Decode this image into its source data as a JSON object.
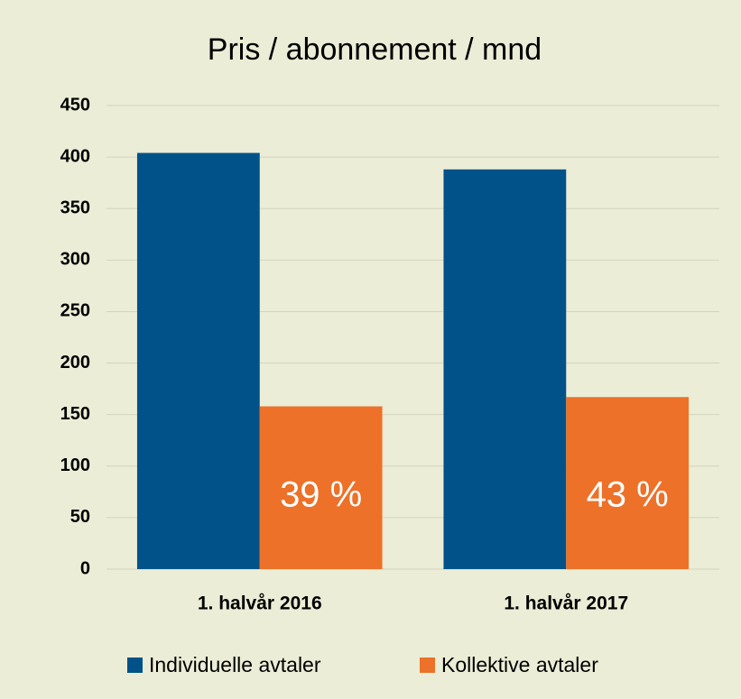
{
  "chart_data": {
    "type": "bar",
    "title": "Pris / abonnement / mnd",
    "categories": [
      "1. halvår 2016",
      "1. halvår 2017"
    ],
    "series": [
      {
        "name": "Individuelle avtaler",
        "color": "#005288",
        "values": [
          404,
          388
        ]
      },
      {
        "name": "Kollektive avtaler",
        "color": "#ed7128",
        "values": [
          158,
          167
        ]
      }
    ],
    "annotations": [
      "39 %",
      "43 %"
    ],
    "ylim": [
      0,
      450
    ],
    "yticks": [
      0,
      50,
      100,
      150,
      200,
      250,
      300,
      350,
      400,
      450
    ],
    "grid": true,
    "legend": "bottom"
  }
}
